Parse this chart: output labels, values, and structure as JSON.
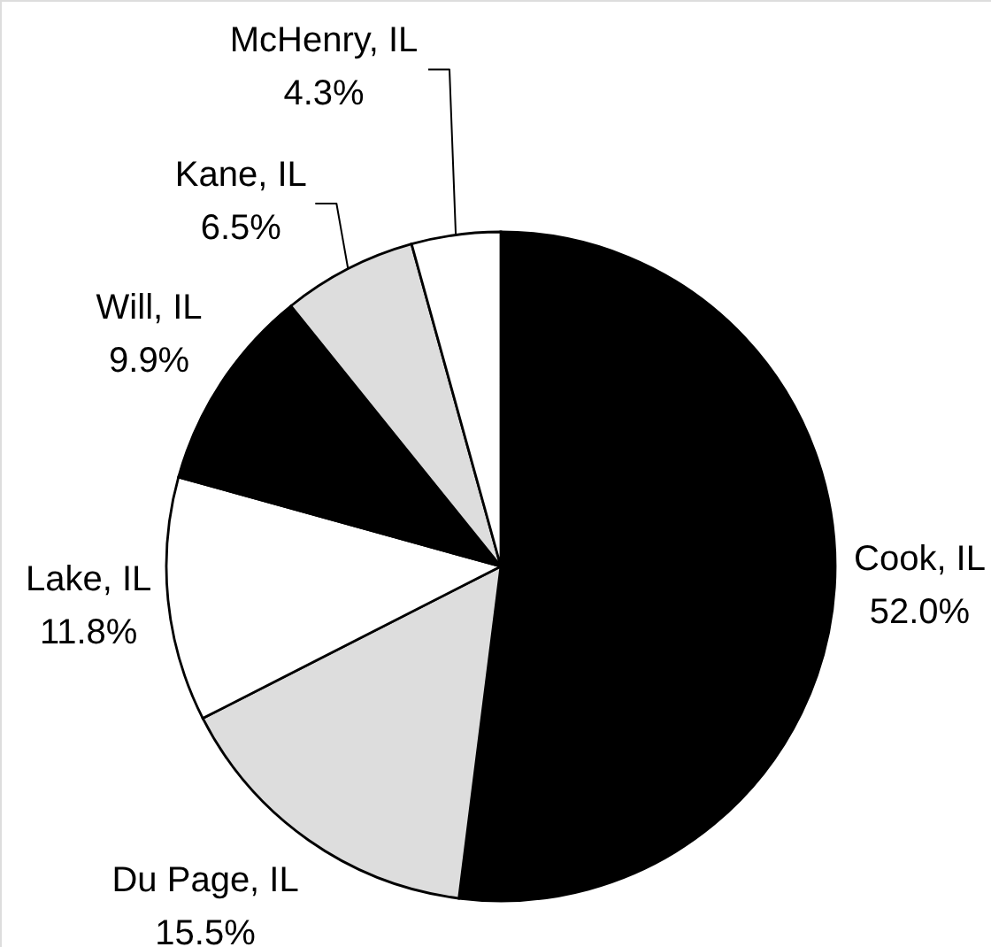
{
  "chart_data": {
    "type": "pie",
    "categories": [
      "Cook, IL",
      "Du Page, IL",
      "Lake, IL",
      "Will, IL",
      "Kane, IL",
      "McHenry, IL"
    ],
    "values": [
      52.0,
      15.5,
      11.8,
      9.9,
      6.5,
      4.3
    ],
    "colors": [
      "#000000",
      "#dddddd",
      "#ffffff",
      "#000000",
      "#dddddd",
      "#ffffff"
    ],
    "value_labels": [
      "52.0%",
      "15.5%",
      "11.8%",
      "9.9%",
      "6.5%",
      "4.3%"
    ]
  }
}
